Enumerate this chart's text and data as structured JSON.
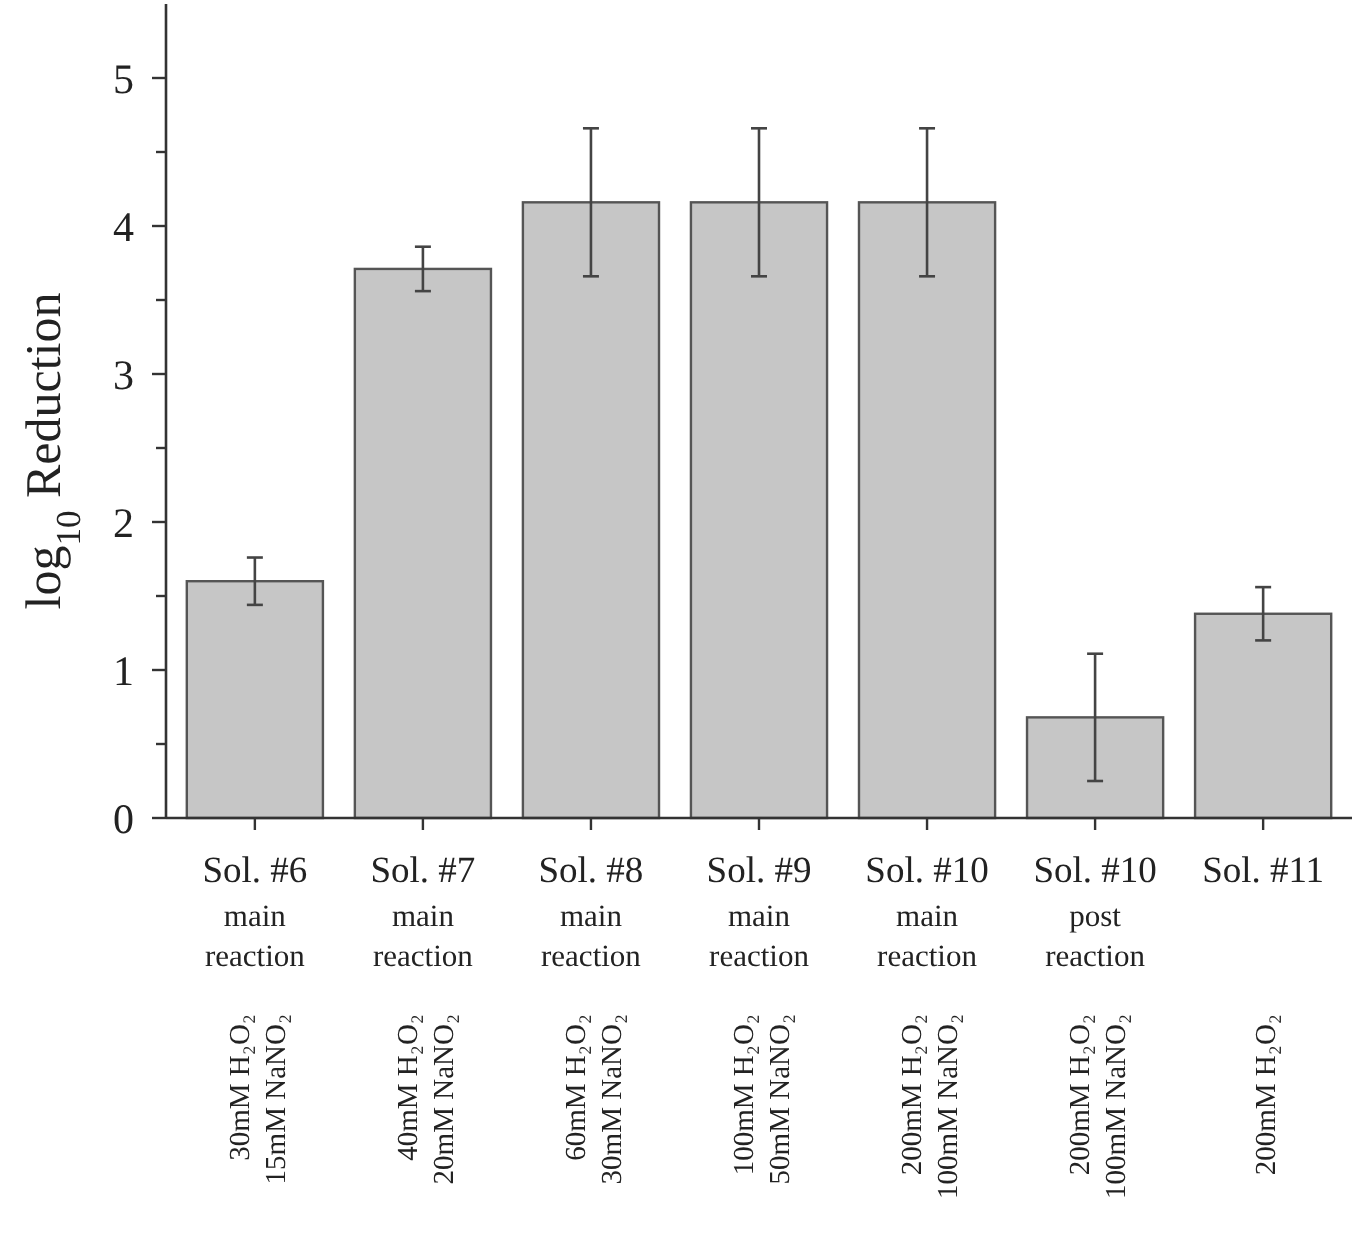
{
  "chart_data": {
    "type": "bar",
    "ylabel": "log$_{10}$ Reduction",
    "categories": [
      "Sol. #6\nmain\nreaction\n30mM H₂O₂\n15mM NaNO₂",
      "Sol. #7\nmain\nreaction\n40mM H₂O₂\n20mM NaNO₂",
      "Sol. #8\nmain\nreaction\n60mM H₂O₂\n30mM NaNO₂",
      "Sol. #9\nmain\nreaction\n100mM H₂O₂\n50mM NaNO₂",
      "Sol. #10\nmain\nreaction\n200mM H₂O₂\n100mM NaNO₂",
      "Sol. #10\npost\nreaction\n200mM H₂O₂\n100mM NaNO₂",
      "Sol. #11\n\n\n200mM H₂O₂"
    ],
    "values": [
      1.6,
      3.71,
      4.16,
      4.16,
      4.16,
      0.68,
      1.38
    ],
    "errors": [
      0.16,
      0.15,
      0.5,
      0.5,
      0.5,
      0.43,
      0.18
    ],
    "color": "#c6c6c6",
    "ylim": [
      0,
      5.5
    ],
    "yticks": [
      0,
      {
        "value": 0.5,
        "label": null
      },
      1,
      {
        "value": 1.5,
        "label": null
      },
      2,
      {
        "value": 2.5,
        "label": null
      },
      3,
      {
        "value": 3.5,
        "label": null
      },
      4,
      {
        "value": 4.5,
        "label": null
      },
      5
    ],
    "grid": false
  }
}
